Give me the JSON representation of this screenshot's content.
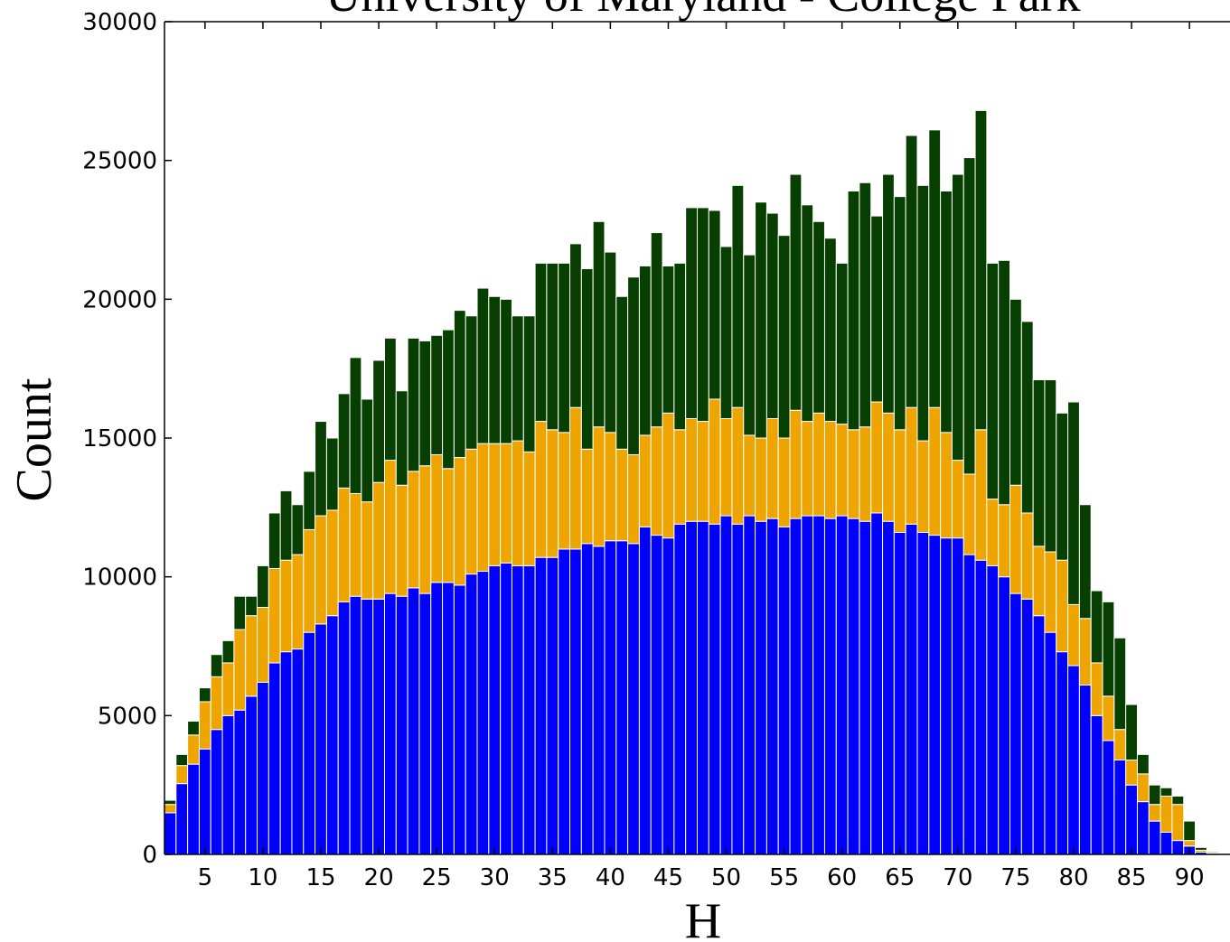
{
  "chart_data": {
    "type": "bar",
    "stacked": true,
    "title": "University of Maryland - College Park",
    "x_label": "H",
    "y_label": "Count",
    "x": [
      2,
      3,
      4,
      5,
      6,
      7,
      8,
      9,
      10,
      11,
      12,
      13,
      14,
      15,
      16,
      17,
      18,
      19,
      20,
      21,
      22,
      23,
      24,
      25,
      26,
      27,
      28,
      29,
      30,
      31,
      32,
      33,
      34,
      35,
      36,
      37,
      38,
      39,
      40,
      41,
      42,
      43,
      44,
      45,
      46,
      47,
      48,
      49,
      50,
      51,
      52,
      53,
      54,
      55,
      56,
      57,
      58,
      59,
      60,
      61,
      62,
      63,
      64,
      65,
      66,
      67,
      68,
      69,
      70,
      71,
      72,
      73,
      74,
      75,
      76,
      77,
      78,
      79,
      80,
      81,
      82,
      83,
      84,
      85,
      86,
      87,
      88,
      89,
      90,
      91,
      92,
      93
    ],
    "series": [
      {
        "color": "#0000ff",
        "values": [
          1500,
          2550,
          3250,
          3800,
          4500,
          5000,
          5200,
          5700,
          6200,
          6900,
          7300,
          7400,
          8000,
          8300,
          8600,
          9100,
          9300,
          9200,
          9200,
          9400,
          9300,
          9600,
          9400,
          9800,
          9800,
          9700,
          10100,
          10200,
          10400,
          10500,
          10400,
          10400,
          10700,
          10700,
          11000,
          11000,
          11200,
          11100,
          11300,
          11300,
          11200,
          11800,
          11500,
          11400,
          11900,
          12000,
          12000,
          11900,
          12200,
          11900,
          12200,
          12000,
          12100,
          11800,
          12100,
          12200,
          12200,
          12100,
          12200,
          12100,
          12000,
          12300,
          12000,
          11600,
          11900,
          11600,
          11500,
          11400,
          11400,
          10800,
          10600,
          10400,
          10000,
          9400,
          9200,
          8600,
          8000,
          7300,
          6800,
          6100,
          5000,
          4100,
          3400,
          2500,
          1900,
          1200,
          800,
          500,
          300,
          80,
          40,
          20
        ]
      },
      {
        "color": "#efa500",
        "values": [
          300,
          650,
          1050,
          1700,
          1900,
          1900,
          2900,
          2900,
          2700,
          3400,
          3300,
          3400,
          3700,
          3900,
          3800,
          4100,
          3700,
          3500,
          4200,
          4800,
          4000,
          4200,
          4600,
          4600,
          4100,
          4600,
          4500,
          4600,
          4400,
          4300,
          4500,
          4100,
          4900,
          4600,
          4200,
          5100,
          3400,
          4300,
          3900,
          3300,
          3200,
          3300,
          3900,
          4500,
          3400,
          3700,
          3600,
          4500,
          3500,
          4200,
          2900,
          3000,
          3600,
          3200,
          3900,
          3400,
          3700,
          3500,
          3300,
          3200,
          3400,
          4000,
          3900,
          3700,
          4200,
          3300,
          4600,
          3800,
          2800,
          2900,
          4700,
          2400,
          2600,
          3900,
          3100,
          2500,
          2900,
          3300,
          2200,
          2400,
          1900,
          1600,
          1100,
          900,
          1000,
          600,
          1300,
          1300,
          200,
          70,
          20,
          10
        ]
      },
      {
        "color": "#073f00",
        "values": [
          150,
          400,
          500,
          500,
          800,
          800,
          1200,
          700,
          1500,
          2000,
          2500,
          1800,
          2100,
          3400,
          2600,
          3400,
          4900,
          3700,
          4400,
          4400,
          3400,
          4800,
          4500,
          4300,
          5000,
          5300,
          4800,
          5600,
          5300,
          5200,
          4500,
          4900,
          5700,
          6000,
          6100,
          5900,
          6500,
          7400,
          6500,
          5500,
          6400,
          6100,
          7000,
          5300,
          6000,
          7600,
          7700,
          6800,
          6200,
          8000,
          6500,
          8500,
          7400,
          7300,
          8500,
          7800,
          6900,
          6600,
          5800,
          8600,
          8800,
          6700,
          8600,
          8400,
          9800,
          9200,
          10000,
          8700,
          10300,
          11400,
          11500,
          8500,
          8800,
          6700,
          6900,
          6000,
          6200,
          5300,
          7300,
          4100,
          2600,
          3400,
          3300,
          2000,
          700,
          700,
          300,
          300,
          700,
          100,
          40,
          20
        ]
      }
    ],
    "xlim": [
      1.5,
      93.5
    ],
    "xticks": [
      5,
      10,
      15,
      20,
      25,
      30,
      35,
      40,
      45,
      50,
      55,
      60,
      65,
      70,
      75,
      80,
      85,
      90
    ],
    "ylim": [
      0,
      30000
    ],
    "yticks": [
      0,
      5000,
      10000,
      15000,
      20000,
      25000,
      30000
    ]
  }
}
